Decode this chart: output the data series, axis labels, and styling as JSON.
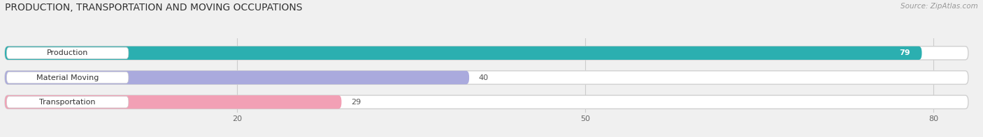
{
  "title": "PRODUCTION, TRANSPORTATION AND MOVING OCCUPATIONS",
  "source": "Source: ZipAtlas.com",
  "categories": [
    "Production",
    "Material Moving",
    "Transportation"
  ],
  "values": [
    79,
    40,
    29
  ],
  "bar_colors": [
    "#2BAFB0",
    "#AAAADD",
    "#F2A0B5"
  ],
  "xlim_max": 83,
  "xticks": [
    20,
    50,
    80
  ],
  "bg_color": "#f0f0f0",
  "title_fontsize": 10,
  "label_fontsize": 8,
  "value_fontsize": 8,
  "source_fontsize": 7.5
}
